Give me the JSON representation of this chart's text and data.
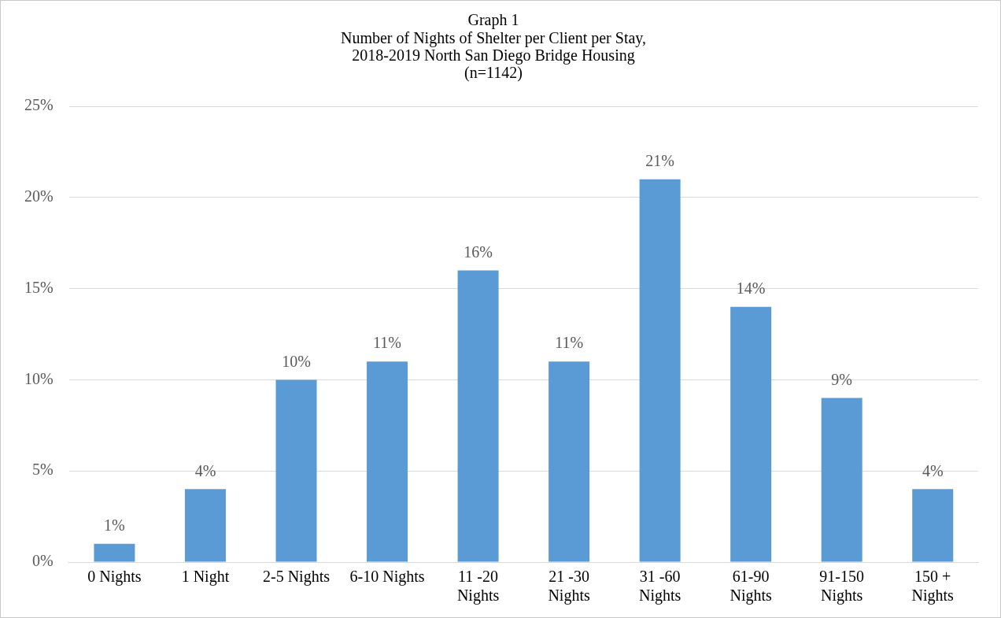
{
  "chart_data": {
    "type": "bar",
    "title": "Graph 1",
    "subtitle": "Number of Nights of Shelter per Client per Stay,\n2018-2019 North San Diego Bridge Housing\n(n=1142)",
    "categories": [
      "0 Nights",
      "1 Night",
      "2-5 Nights",
      "6-10 Nights",
      "11 -20 Nights",
      "21 -30 Nights",
      "31 -60 Nights",
      "61-90 Nights",
      "91-150 Nights",
      "150 + Nights"
    ],
    "values": [
      1,
      4,
      10,
      11,
      16,
      11,
      21,
      14,
      9,
      4
    ],
    "value_labels": [
      "1%",
      "4%",
      "10%",
      "11%",
      "16%",
      "11%",
      "21%",
      "14%",
      "9%",
      "4%"
    ],
    "color": "#5b9bd5",
    "ylim": [
      0,
      25
    ],
    "yticks": [
      {
        "value": 0,
        "label": "0%"
      },
      {
        "value": 5,
        "label": "5%"
      },
      {
        "value": 10,
        "label": "10%"
      },
      {
        "value": 15,
        "label": "15%"
      },
      {
        "value": 20,
        "label": "20%"
      },
      {
        "value": 25,
        "label": "25%"
      }
    ],
    "grid": "y",
    "legend": false
  }
}
